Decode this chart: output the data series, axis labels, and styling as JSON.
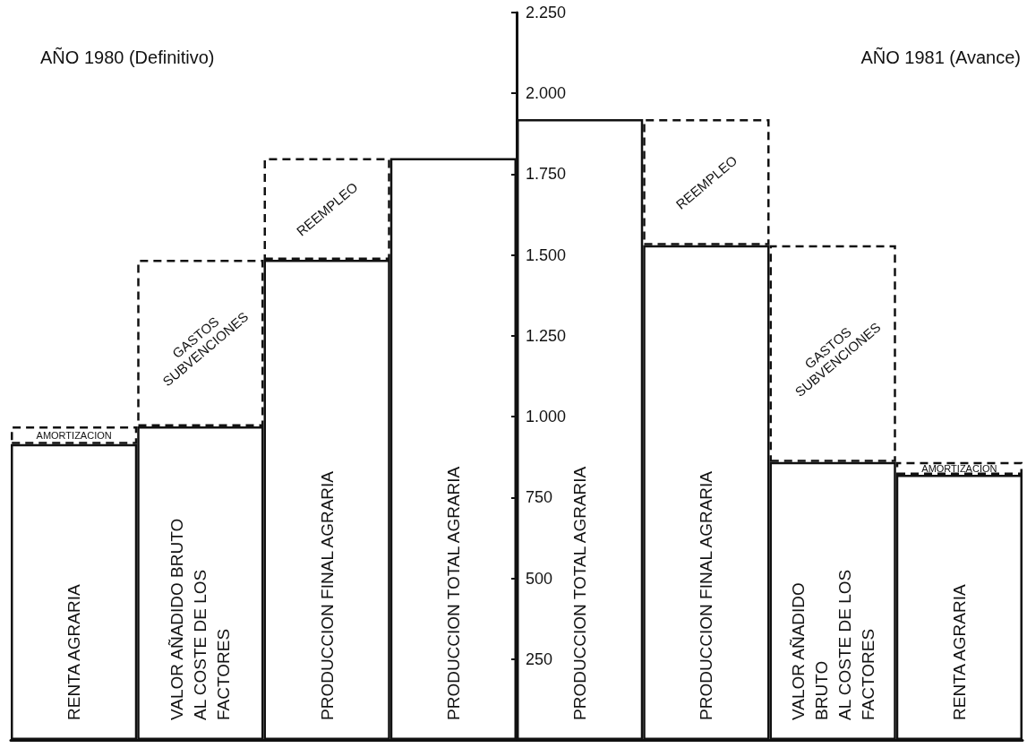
{
  "chart_data": {
    "type": "bar",
    "stacked": true,
    "annotations": [
      "AÑO 1980 (Definitivo)",
      "AÑO 1981 (Avance)"
    ],
    "categories": [
      "RENTA AGRARIA",
      "VALOR AÑADIDO BRUTO\nAL COSTE DE LOS\nFACTORES",
      "PRODUCCION FINAL AGRARIA",
      "PRODUCCION TOTAL AGRARIA",
      "PRODUCCION TOTAL AGRARIA",
      "PRODUCCION FINAL AGRARIA",
      "VALOR AÑADIDO\nBRUTO\nAL COSTE DE LOS\nFACTORES",
      "RENTA AGRARIA"
    ],
    "series": [
      {
        "color": "#ffffff",
        "line_style": "solid",
        "values": [
          915,
          970,
          1485,
          1800,
          1920,
          1530,
          860,
          820
        ]
      },
      {
        "color": "#ffffff",
        "line_style": "dashed",
        "values": [
          55,
          515,
          315,
          null,
          null,
          390,
          670,
          40
        ],
        "value_labels": [
          "AMORTIZACION",
          "GASTOS\nSUBVENCIONES",
          "REEMPLEO",
          null,
          null,
          "REEMPLEO",
          "GASTOS\nSUBVENCIONES",
          "AMORTIZACION"
        ]
      }
    ],
    "ylim": [
      0,
      2250
    ],
    "yticks": [
      250,
      500,
      750,
      {
        "value": 1000,
        "label": "1.000"
      },
      {
        "value": 1250,
        "label": "1.250"
      },
      {
        "value": 1500,
        "label": "1.500"
      },
      {
        "value": 1750,
        "label": "1.750"
      },
      {
        "value": 2000,
        "label": "2.000"
      },
      {
        "value": 2250,
        "label": "2.250"
      }
    ]
  }
}
